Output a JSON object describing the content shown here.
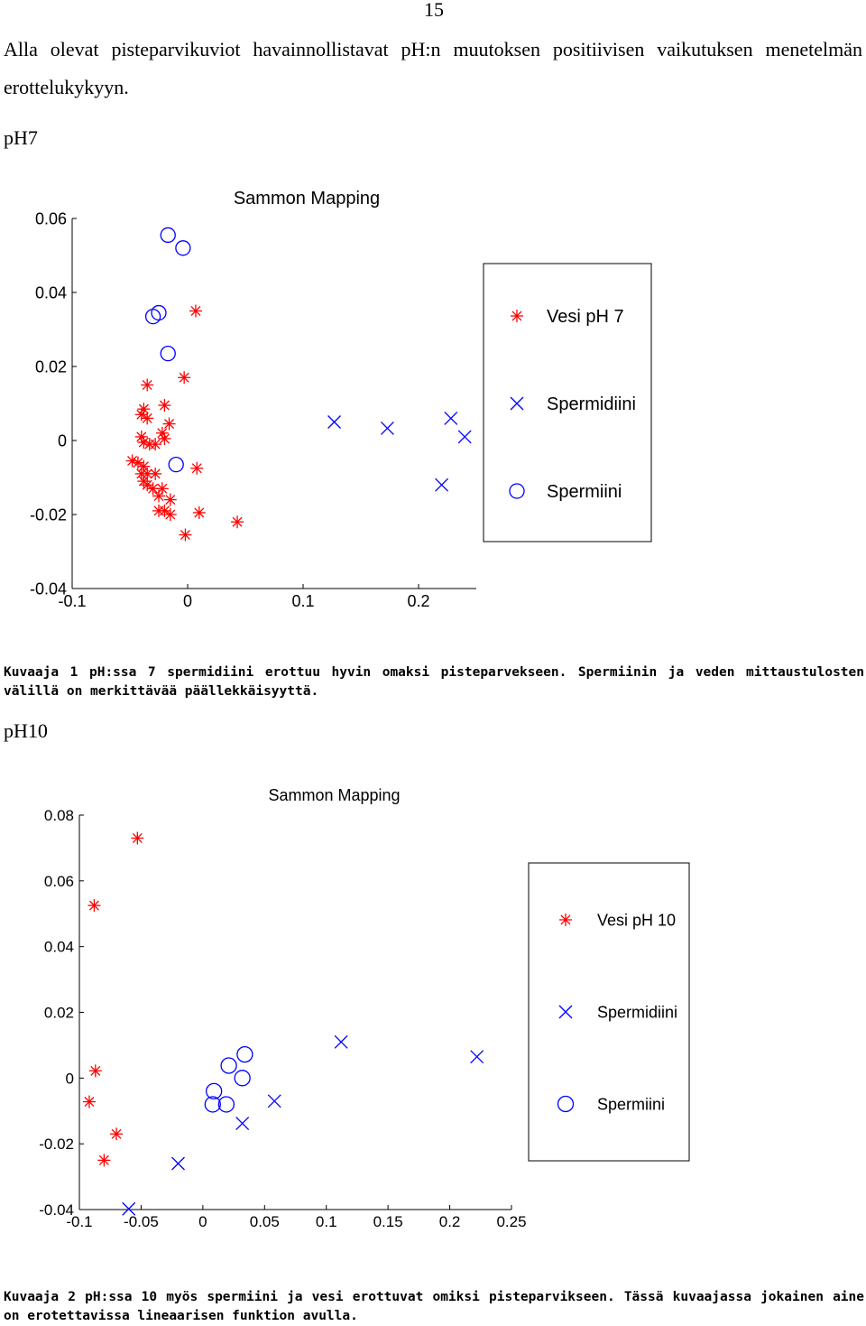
{
  "page": {
    "number": "15",
    "intro": "Alla olevat pisteparvikuviot havainnollistavat pH:n muutoksen positiivisen vaikutuksen menetelmän erottelukykyyn.",
    "section1_heading": "pH7",
    "caption1": "Kuvaaja 1 pH:ssa 7 spermidiini erottuu hyvin omaksi pisteparvekseen. Spermiinin ja veden mittaustulosten välillä on merkittävää päällekkäisyyttä.",
    "section2_heading": "pH10",
    "caption2": "Kuvaaja 2 pH:ssa 10 myös spermiini ja vesi erottuvat omiksi pisteparvikseen. Tässä kuvaajassa jokainen aine on erotettavissa lineaarisen funktion avulla."
  },
  "chart_data": [
    {
      "type": "scatter",
      "title": "Sammon Mapping",
      "xlim": [
        -0.1,
        0.25
      ],
      "ylim": [
        -0.04,
        0.06
      ],
      "xticks": [
        "-0.1",
        "0",
        "0.1",
        "0.2"
      ],
      "xtick_values": [
        -0.1,
        0,
        0.1,
        0.2
      ],
      "yticks": [
        "0.06",
        "0.04",
        "0.02",
        "0",
        "-0.02",
        "-0.04"
      ],
      "ytick_values": [
        0.06,
        0.04,
        0.02,
        0,
        -0.02,
        -0.04
      ],
      "grid": false,
      "legend_position": "right",
      "colors": {
        "red": "#ff0000",
        "blue": "#0000ff"
      },
      "series": [
        {
          "name": "Vesi pH 7",
          "marker": "asterisk",
          "color": "#ff0000",
          "points": [
            [
              0.007,
              0.035
            ],
            [
              -0.035,
              0.015
            ],
            [
              -0.003,
              0.017
            ],
            [
              -0.02,
              0.0095
            ],
            [
              -0.038,
              0.0085
            ],
            [
              -0.04,
              0.007
            ],
            [
              -0.035,
              0.006
            ],
            [
              -0.016,
              0.0045
            ],
            [
              -0.022,
              0.002
            ],
            [
              -0.04,
              0.001
            ],
            [
              -0.02,
              0.0005
            ],
            [
              -0.038,
              -0.0005
            ],
            [
              -0.033,
              -0.001
            ],
            [
              -0.028,
              -0.001
            ],
            [
              -0.048,
              -0.0055
            ],
            [
              -0.043,
              -0.006
            ],
            [
              -0.038,
              -0.007
            ],
            [
              -0.04,
              -0.009
            ],
            [
              -0.035,
              -0.009
            ],
            [
              -0.028,
              -0.009
            ],
            [
              -0.038,
              -0.011
            ],
            [
              -0.035,
              -0.012
            ],
            [
              -0.03,
              -0.013
            ],
            [
              -0.022,
              -0.013
            ],
            [
              -0.025,
              -0.015
            ],
            [
              -0.015,
              -0.016
            ],
            [
              -0.025,
              -0.019
            ],
            [
              -0.02,
              -0.019
            ],
            [
              -0.015,
              -0.02
            ],
            [
              0.008,
              -0.0075
            ],
            [
              0.01,
              -0.0195
            ],
            [
              0.043,
              -0.022
            ],
            [
              -0.002,
              -0.0255
            ]
          ]
        },
        {
          "name": "Spermidiini",
          "marker": "x",
          "color": "#0000ff",
          "points": [
            [
              0.127,
              0.005
            ],
            [
              0.173,
              0.0033
            ],
            [
              0.228,
              0.006
            ],
            [
              0.24,
              0.001
            ],
            [
              0.22,
              -0.012
            ]
          ]
        },
        {
          "name": "Spermiini",
          "marker": "circle",
          "color": "#0000ff",
          "points": [
            [
              -0.017,
              0.0555
            ],
            [
              -0.004,
              0.052
            ],
            [
              -0.025,
              0.0345
            ],
            [
              -0.03,
              0.0335
            ],
            [
              -0.017,
              0.0235
            ],
            [
              -0.01,
              -0.0065
            ]
          ]
        }
      ]
    },
    {
      "type": "scatter",
      "title": "Sammon Mapping",
      "xlim": [
        -0.1,
        0.25
      ],
      "ylim": [
        -0.04,
        0.08
      ],
      "xticks": [
        "-0.1",
        "-0.05",
        "0",
        "0.05",
        "0.1",
        "0.15",
        "0.2",
        "0.25"
      ],
      "xtick_values": [
        -0.1,
        -0.05,
        0,
        0.05,
        0.1,
        0.15,
        0.2,
        0.25
      ],
      "yticks": [
        "0.08",
        "0.06",
        "0.04",
        "0.02",
        "0",
        "-0.02",
        "-0.04"
      ],
      "ytick_values": [
        0.08,
        0.06,
        0.04,
        0.02,
        0,
        -0.02,
        -0.04
      ],
      "grid": false,
      "legend_position": "right",
      "colors": {
        "red": "#ff0000",
        "blue": "#0000ff"
      },
      "series": [
        {
          "name": "Vesi pH 10",
          "marker": "asterisk",
          "color": "#ff0000",
          "points": [
            [
              -0.053,
              0.073
            ],
            [
              -0.088,
              0.0525
            ],
            [
              -0.087,
              0.0022
            ],
            [
              -0.092,
              -0.0072
            ],
            [
              -0.07,
              -0.017
            ],
            [
              -0.08,
              -0.025
            ]
          ]
        },
        {
          "name": "Spermidiini",
          "marker": "x",
          "color": "#0000ff",
          "points": [
            [
              0.112,
              0.011
            ],
            [
              0.222,
              0.0065
            ],
            [
              0.058,
              -0.007
            ],
            [
              0.032,
              -0.0138
            ],
            [
              -0.02,
              -0.026
            ],
            [
              -0.06,
              -0.0398
            ]
          ]
        },
        {
          "name": "Spermiini",
          "marker": "circle",
          "color": "#0000ff",
          "points": [
            [
              0.034,
              0.0072
            ],
            [
              0.021,
              0.0038
            ],
            [
              0.032,
              0.0
            ],
            [
              0.009,
              -0.004
            ],
            [
              0.008,
              -0.008
            ],
            [
              0.019,
              -0.008
            ]
          ]
        }
      ]
    }
  ]
}
